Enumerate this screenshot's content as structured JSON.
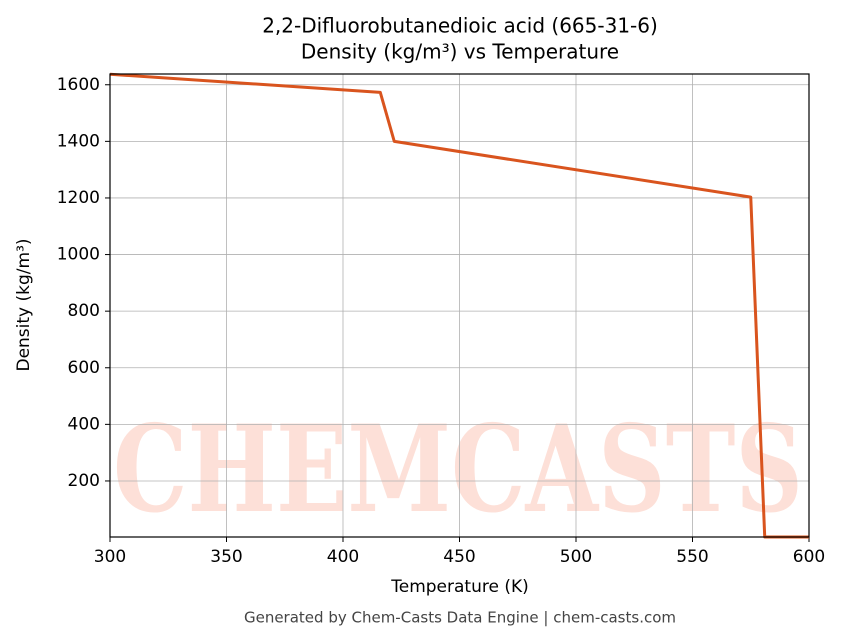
{
  "chart_data": {
    "type": "line",
    "title": "2,2-Difluorobutanedioic acid (665-31-6)",
    "subtitle": "Density (kg/m³) vs Temperature",
    "x_label": "Temperature (K)",
    "y_label": "Density (kg/m³)",
    "footer": "Generated by Chem-Casts Data Engine | chem-casts.com",
    "watermark": "CHEMCASTS",
    "x": [
      300,
      416,
      422,
      575,
      581,
      600
    ],
    "series": [
      {
        "name": "Density",
        "color": "#d9541e",
        "values": [
          1637,
          1573,
          1400,
          1203,
          2,
          2
        ]
      }
    ],
    "xlim": [
      300,
      600
    ],
    "xticks": [
      300,
      350,
      400,
      450,
      500,
      550,
      600
    ],
    "ylim": [
      2,
      1638
    ],
    "yticks": [
      200,
      400,
      600,
      800,
      1000,
      1200,
      1400,
      1600
    ],
    "grid": true
  }
}
